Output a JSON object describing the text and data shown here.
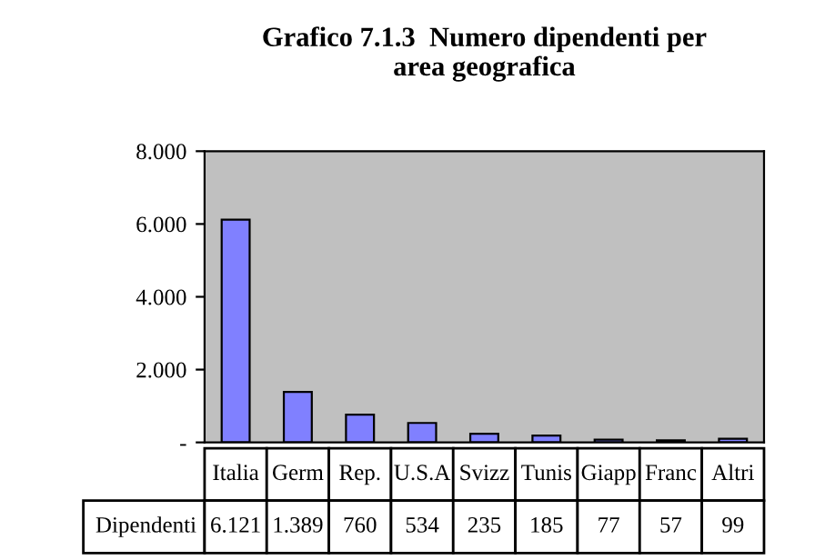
{
  "chart_data": {
    "type": "bar",
    "title": "Grafico 7.1.3  Numero dipendenti per\narea geografica",
    "categories": [
      "Italia",
      "Germ",
      "Rep.",
      "U.S.A",
      "Svizz",
      "Tunis",
      "Giapp",
      "Franc",
      "Altri"
    ],
    "series": [
      {
        "name": "Dipendenti",
        "color": "#8080ff",
        "values": [
          6121,
          1389,
          760,
          534,
          235,
          185,
          77,
          57,
          99
        ],
        "value_labels": [
          "6.121",
          "1.389",
          "760",
          "534",
          "235",
          "185",
          "77",
          "57",
          "99"
        ]
      }
    ],
    "ylim": [
      0,
      8000
    ],
    "yticks": [
      {
        "value": 0,
        "label": "-"
      },
      {
        "value": 2000,
        "label": "2.000"
      },
      {
        "value": 4000,
        "label": "4.000"
      },
      {
        "value": 6000,
        "label": "6.000"
      },
      {
        "value": 8000,
        "label": "8.000"
      }
    ],
    "grid": false,
    "legend": false
  }
}
